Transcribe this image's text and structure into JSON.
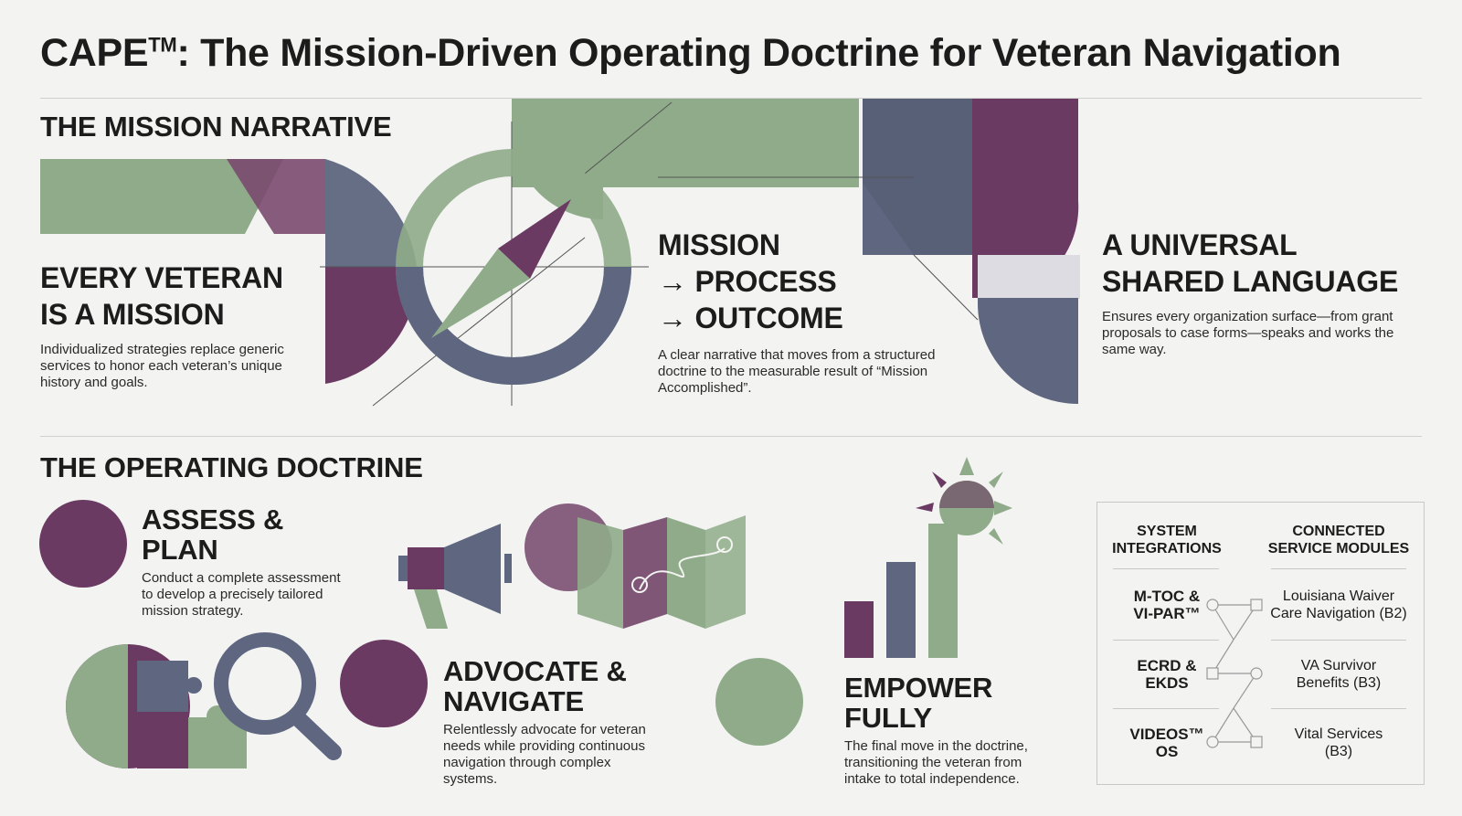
{
  "title_main": "CAPE",
  "title_tm": "TM",
  "title_rest": ": The Mission-Driven Operating Doctrine for Veteran Navigation",
  "narrative": {
    "section_title": "THE MISSION NARRATIVE",
    "cards": [
      {
        "heading_lines": [
          "EVERY VETERAN",
          "IS A MISSION"
        ],
        "body": "Individualized strategies replace generic services to honor each veteran’s unique history and goals."
      },
      {
        "heading_lines": [
          "MISSION",
          "→ PROCESS",
          "→ OUTCOME"
        ],
        "body": "A clear narrative that moves from a structured doctrine to the measurable result of “Mission Accomplished”."
      },
      {
        "heading_lines": [
          "A UNIVERSAL",
          "SHARED LANGUAGE"
        ],
        "body": "Ensures every organization surface—from grant proposals to case forms—speaks and works the same way."
      }
    ]
  },
  "doctrine": {
    "section_title": "THE OPERATING DOCTRINE",
    "steps": [
      {
        "heading_lines": [
          "ASSESS &",
          "PLAN"
        ],
        "body": "Conduct a complete assessment to develop a precisely tailored mission strategy."
      },
      {
        "heading_lines": [
          "ADVOCATE &",
          "NAVIGATE"
        ],
        "body": "Relentlessly advocate for veteran needs while providing continuous navigation through complex systems."
      },
      {
        "heading_lines": [
          "EMPOWER",
          "FULLY"
        ],
        "body": "The final move in the doctrine, transitioning the veteran from intake to total independence."
      }
    ]
  },
  "integrations": {
    "left_title": [
      "SYSTEM",
      "INTEGRATIONS"
    ],
    "right_title": [
      "CONNECTED",
      "SERVICE MODULES"
    ],
    "systems": [
      [
        "M-TOC &",
        "VI-PAR™"
      ],
      [
        "ECRD &",
        "EKDS"
      ],
      [
        "VIDEOS™",
        "OS"
      ]
    ],
    "modules": [
      [
        "Louisiana Waiver",
        "Care Navigation (B2)"
      ],
      [
        "VA Survivor",
        "Benefits (B3)"
      ],
      [
        "Vital Services",
        "(B3)"
      ]
    ]
  },
  "colors": {
    "purple": "#6b3a62",
    "green": "#8fab8a",
    "slate": "#5e6680",
    "background": "#f3f3f2"
  },
  "icons": [
    "compass-icon",
    "megaphone-icon",
    "map-icon",
    "puzzle-icon",
    "magnifier-icon",
    "growth-chart-icon",
    "sun-icon"
  ]
}
